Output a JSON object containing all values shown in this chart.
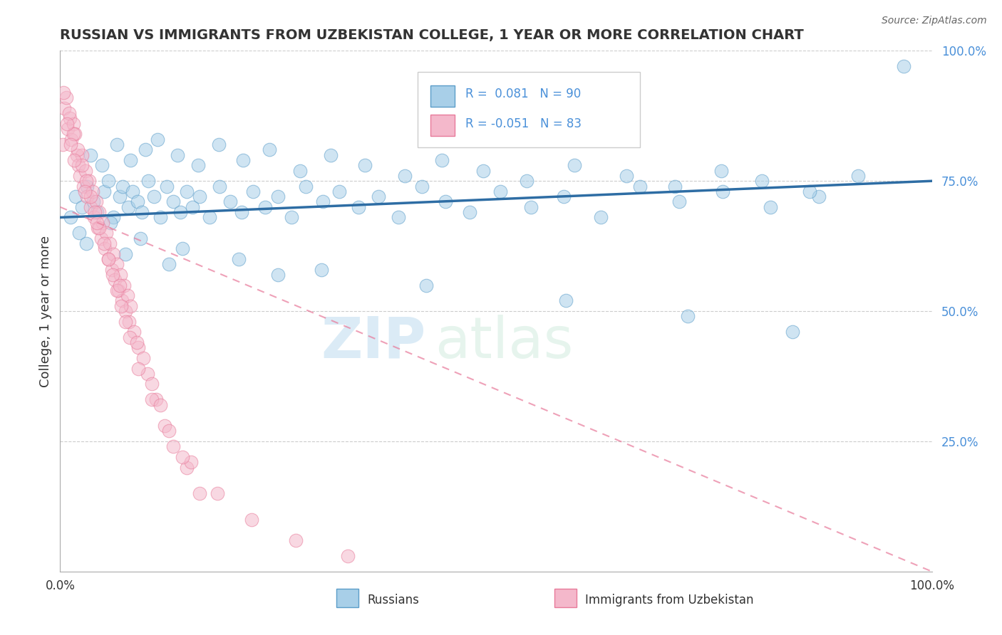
{
  "title": "RUSSIAN VS IMMIGRANTS FROM UZBEKISTAN COLLEGE, 1 YEAR OR MORE CORRELATION CHART",
  "source_text": "Source: ZipAtlas.com",
  "ylabel": "College, 1 year or more",
  "watermark_zip": "ZIP",
  "watermark_atlas": "atlas",
  "legend_r_blue": "0.081",
  "legend_n_blue": "90",
  "legend_r_pink": "-0.051",
  "legend_n_pink": "83",
  "legend_label_blue": "Russians",
  "legend_label_pink": "Immigrants from Uzbekistan",
  "xlim": [
    0.0,
    100.0
  ],
  "ylim": [
    0.0,
    100.0
  ],
  "blue_fill": "#a8cfe8",
  "pink_fill": "#f4b8cb",
  "blue_edge": "#5b9dc9",
  "pink_edge": "#e87a9a",
  "blue_line_color": "#2e6da4",
  "pink_line_color": "#e87a9a",
  "title_color": "#333333",
  "source_color": "#666666",
  "right_tick_color": "#4a90d9",
  "blue_scatter_x": [
    1.2,
    1.8,
    2.5,
    3.1,
    3.8,
    4.2,
    5.0,
    5.5,
    6.1,
    6.8,
    7.2,
    7.8,
    8.3,
    8.9,
    9.4,
    10.1,
    10.8,
    11.5,
    12.2,
    13.0,
    13.8,
    14.5,
    15.2,
    16.0,
    17.1,
    18.3,
    19.5,
    20.8,
    22.1,
    23.5,
    25.0,
    26.5,
    28.2,
    30.1,
    32.0,
    34.2,
    36.5,
    38.8,
    41.5,
    44.2,
    47.0,
    50.5,
    54.0,
    57.8,
    62.0,
    66.5,
    71.0,
    76.0,
    81.5,
    87.0,
    3.5,
    4.8,
    6.5,
    8.1,
    9.8,
    11.2,
    13.5,
    15.8,
    18.2,
    21.0,
    24.0,
    27.5,
    31.0,
    35.0,
    39.5,
    43.8,
    48.5,
    53.5,
    59.0,
    65.0,
    70.5,
    75.8,
    80.5,
    86.0,
    91.5,
    96.8,
    2.2,
    5.8,
    9.2,
    14.0,
    20.5,
    30.0,
    42.0,
    58.0,
    72.0,
    84.0,
    3.0,
    7.5,
    12.5,
    25.0
  ],
  "blue_scatter_y": [
    68.0,
    72.0,
    70.0,
    74.0,
    71.0,
    69.0,
    73.0,
    75.0,
    68.0,
    72.0,
    74.0,
    70.0,
    73.0,
    71.0,
    69.0,
    75.0,
    72.0,
    68.0,
    74.0,
    71.0,
    69.0,
    73.0,
    70.0,
    72.0,
    68.0,
    74.0,
    71.0,
    69.0,
    73.0,
    70.0,
    72.0,
    68.0,
    74.0,
    71.0,
    73.0,
    70.0,
    72.0,
    68.0,
    74.0,
    71.0,
    69.0,
    73.0,
    70.0,
    72.0,
    68.0,
    74.0,
    71.0,
    73.0,
    70.0,
    72.0,
    80.0,
    78.0,
    82.0,
    79.0,
    81.0,
    83.0,
    80.0,
    78.0,
    82.0,
    79.0,
    81.0,
    77.0,
    80.0,
    78.0,
    76.0,
    79.0,
    77.0,
    75.0,
    78.0,
    76.0,
    74.0,
    77.0,
    75.0,
    73.0,
    76.0,
    97.0,
    65.0,
    67.0,
    64.0,
    62.0,
    60.0,
    58.0,
    55.0,
    52.0,
    49.0,
    46.0,
    63.0,
    61.0,
    59.0,
    57.0
  ],
  "pink_scatter_x": [
    0.3,
    0.5,
    0.7,
    0.9,
    1.1,
    1.3,
    1.5,
    1.7,
    1.9,
    2.1,
    2.3,
    2.5,
    2.7,
    2.9,
    3.1,
    3.3,
    3.5,
    3.7,
    3.9,
    4.1,
    4.3,
    4.5,
    4.7,
    4.9,
    5.1,
    5.3,
    5.5,
    5.7,
    5.9,
    6.1,
    6.3,
    6.5,
    6.7,
    6.9,
    7.1,
    7.3,
    7.5,
    7.7,
    7.9,
    8.1,
    8.5,
    9.0,
    9.5,
    10.0,
    10.5,
    11.0,
    12.0,
    13.0,
    14.5,
    16.0,
    1.0,
    1.5,
    2.0,
    2.5,
    3.0,
    3.5,
    4.0,
    4.5,
    5.0,
    5.5,
    6.0,
    6.5,
    7.0,
    7.5,
    8.0,
    9.0,
    10.5,
    12.5,
    15.0,
    18.0,
    22.0,
    27.0,
    33.0,
    0.4,
    0.8,
    1.2,
    1.6,
    2.8,
    4.2,
    6.8,
    8.8,
    11.5,
    14.0
  ],
  "pink_scatter_y": [
    82.0,
    89.0,
    91.0,
    85.0,
    87.0,
    83.0,
    86.0,
    84.0,
    80.0,
    78.0,
    76.0,
    80.0,
    74.0,
    77.0,
    72.0,
    75.0,
    70.0,
    73.0,
    68.0,
    71.0,
    66.0,
    69.0,
    64.0,
    67.0,
    62.0,
    65.0,
    60.0,
    63.0,
    58.0,
    61.0,
    56.0,
    59.0,
    54.0,
    57.0,
    52.0,
    55.0,
    50.0,
    53.0,
    48.0,
    51.0,
    46.0,
    43.0,
    41.0,
    38.0,
    36.0,
    33.0,
    28.0,
    24.0,
    20.0,
    15.0,
    88.0,
    84.0,
    81.0,
    78.0,
    75.0,
    72.0,
    69.0,
    66.0,
    63.0,
    60.0,
    57.0,
    54.0,
    51.0,
    48.0,
    45.0,
    39.0,
    33.0,
    27.0,
    21.0,
    15.0,
    10.0,
    6.0,
    3.0,
    92.0,
    86.0,
    82.0,
    79.0,
    73.0,
    67.0,
    55.0,
    44.0,
    32.0,
    22.0
  ]
}
